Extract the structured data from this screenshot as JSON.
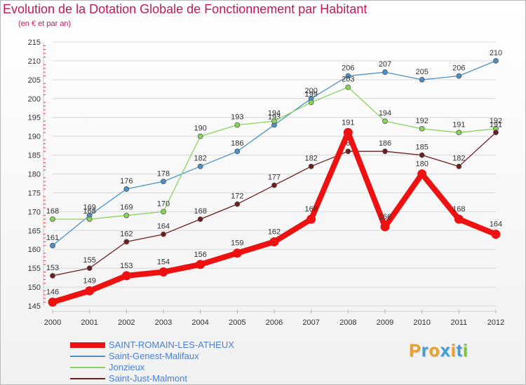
{
  "header": {
    "title": "Evolution de la Dotation Globale de Fonctionnement par Habitant",
    "subtitle": "(en € et par an)"
  },
  "logo": {
    "parts": [
      {
        "text": "P",
        "color": "#f0a020"
      },
      {
        "text": "r",
        "color": "#3aa0d8"
      },
      {
        "text": "o",
        "color": "#f0a020"
      },
      {
        "text": "x",
        "color": "#3aa0d8"
      },
      {
        "text": "i",
        "color": "#f0a020"
      },
      {
        "text": "t",
        "color": "#3aa0d8"
      },
      {
        "text": "i",
        "color": "#7dc242"
      }
    ]
  },
  "chart_data": {
    "type": "line",
    "title": "Evolution de la Dotation Globale de Fonctionnement par Habitant",
    "subtitle": "(en € et par an)",
    "xlabel": "",
    "ylabel": "",
    "categories": [
      "2000",
      "2001",
      "2002",
      "2003",
      "2004",
      "2005",
      "2006",
      "2007",
      "2008",
      "2009",
      "2010",
      "2011",
      "2012"
    ],
    "ylim": [
      145,
      215
    ],
    "yticks": [
      145,
      150,
      155,
      160,
      165,
      170,
      175,
      180,
      185,
      190,
      195,
      200,
      205,
      210,
      215
    ],
    "grid": "horizontal",
    "legend_position": "bottom-left",
    "series": [
      {
        "name": "Saint-Genest-Malifaux",
        "color": "#4a90c8",
        "values": [
          161,
          169,
          176,
          178,
          182,
          186,
          193,
          200,
          206,
          207,
          205,
          206,
          210
        ]
      },
      {
        "name": "Jonzieux",
        "color": "#88d45a",
        "values": [
          168,
          168,
          169,
          170,
          190,
          193,
          194,
          199,
          203,
          194,
          192,
          191,
          192
        ]
      },
      {
        "name": "Saint-Just-Malmont",
        "color": "#6e1c1c",
        "values": [
          153,
          155,
          162,
          164,
          168,
          172,
          177,
          182,
          186,
          186,
          185,
          182,
          191
        ]
      },
      {
        "name": "SAINT-ROMAIN-LES-ATHEUX",
        "color": "#ee1111",
        "highlight": true,
        "values": [
          146,
          149,
          153,
          154,
          156,
          159,
          162,
          168,
          191,
          166,
          180,
          168,
          164
        ]
      }
    ],
    "legend_order": [
      "SAINT-ROMAIN-LES-ATHEUX",
      "Saint-Genest-Malifaux",
      "Jonzieux",
      "Saint-Just-Malmont"
    ]
  }
}
